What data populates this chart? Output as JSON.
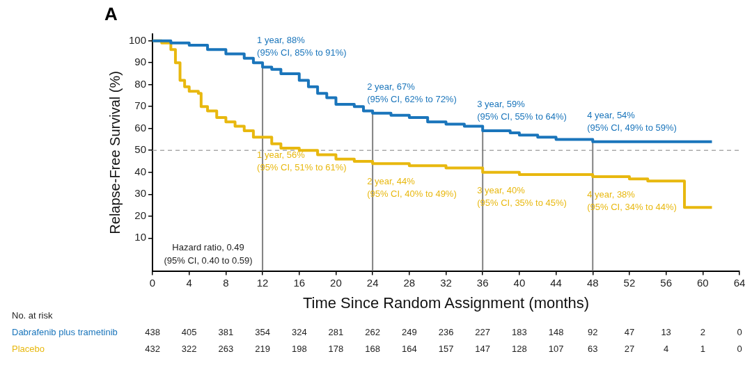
{
  "chart_data": {
    "type": "step",
    "title": "A",
    "xlabel": "Time Since Random Assignment (months)",
    "ylabel": "Relapse-Free Survival (%)",
    "xlim": [
      0,
      64
    ],
    "xticks": [
      0,
      4,
      8,
      12,
      16,
      20,
      24,
      28,
      32,
      36,
      40,
      44,
      48,
      52,
      56,
      60,
      64
    ],
    "ylim": [
      -5,
      103
    ],
    "yticks": [
      10,
      20,
      30,
      40,
      50,
      60,
      70,
      80,
      90,
      100
    ],
    "grid": false,
    "legend": "bottom left",
    "series": [
      {
        "name": "Dabrafenib plus trametinib",
        "color": "#1a75bb",
        "x": [
          0,
          2,
          4,
          6,
          8,
          10,
          11,
          12,
          13,
          14,
          16,
          17,
          18,
          19,
          20,
          22,
          23,
          24,
          26,
          28,
          30,
          32,
          34,
          36,
          38,
          39,
          40,
          42,
          44,
          46,
          48,
          61
        ],
        "values": [
          100,
          99,
          98,
          96,
          94,
          92,
          90,
          88,
          87,
          85,
          82,
          79,
          76,
          74,
          71,
          70,
          68,
          67,
          66,
          65,
          63,
          62,
          61,
          59,
          59,
          58,
          57,
          56,
          55,
          55,
          54,
          54
        ]
      },
      {
        "name": "Placebo",
        "color": "#e8b80f",
        "x": [
          0,
          1,
          2,
          2.5,
          3,
          3.5,
          4,
          5,
          5.3,
          6,
          7,
          8,
          9,
          10,
          11,
          12,
          13,
          14,
          16,
          18,
          20,
          22,
          24,
          28,
          32,
          36,
          40,
          48,
          52,
          54,
          58,
          58,
          61
        ],
        "values": [
          100,
          99,
          96,
          90,
          82,
          79,
          77,
          76,
          70,
          68,
          65,
          63,
          61,
          59,
          56,
          56,
          53,
          51,
          50,
          48,
          46,
          45,
          44,
          43,
          42,
          40,
          39,
          38,
          37,
          36,
          36,
          24,
          24
        ]
      }
    ],
    "ref_lines": [
      {
        "axis": "y",
        "value": 50,
        "color": "#aaaaaa",
        "line_style": "dashed"
      },
      {
        "axis": "x",
        "value": 12,
        "color": "#808080"
      },
      {
        "axis": "x",
        "value": 24,
        "color": "#808080"
      },
      {
        "axis": "x",
        "value": 36,
        "color": "#808080"
      },
      {
        "axis": "x",
        "value": 48,
        "color": "#808080"
      }
    ],
    "annotations": [
      "Hazard ratio, 0.49\n(95% CI, 0.40 to 0.59)",
      "No. at risk",
      "438 405 381 354 324 281 262 249 236 227 183 148 92 47 13 2 0",
      "432 322 263 219 198 178 168 164 157 147 128 107 63 27 4 1 0",
      {
        "text": "1 year, 88%\n(95% CI, 85% to 91%)",
        "x": 12,
        "y": 88
      },
      {
        "text": "2 year, 67%\n(95% CI, 62% to 72%)",
        "x": 24,
        "y": 67
      },
      {
        "text": "3 year, 59%\n(95% CI, 55% to 64%)",
        "x": 36,
        "y": 59
      },
      {
        "text": "4 year, 54%\n(95% CI, 49% to 59%)",
        "x": 48,
        "y": 54
      },
      {
        "text": "1 year, 56%\n(95% CI, 51% to 61%)",
        "x": 12,
        "y": 56
      },
      {
        "text": "2 year, 44%\n(95% CI, 40% to 49%)",
        "x": 24,
        "y": 44
      },
      {
        "text": "3 year, 40%\n(95% CI, 35% to 45%)",
        "x": 36,
        "y": 40
      },
      {
        "text": "4 year, 38%\n(95% CI, 34% to 44%)",
        "x": 48,
        "y": 38
      }
    ]
  }
}
